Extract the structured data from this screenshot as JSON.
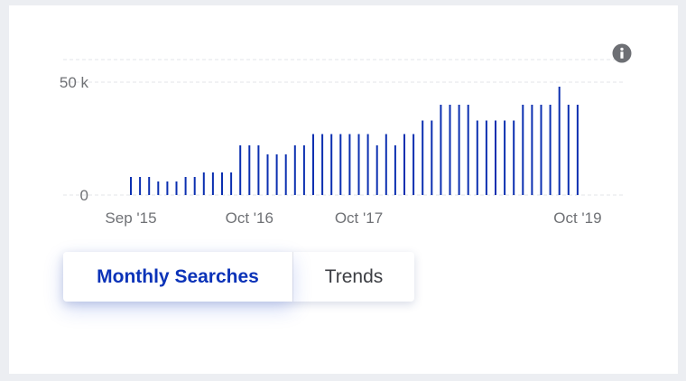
{
  "colors": {
    "bar": "#0b2fb0",
    "grid": "#e3e5e9",
    "active_tab": "#0b33b8"
  },
  "icons": {
    "info": "info-icon"
  },
  "tabs": [
    {
      "label": "Monthly Searches",
      "active": true
    },
    {
      "label": "Trends",
      "active": false
    }
  ],
  "chart_data": {
    "type": "bar",
    "ylabel": "",
    "xlabel": "",
    "y_ticks": [
      {
        "value": 0,
        "label": "0"
      },
      {
        "value": 50000,
        "label": "50 k"
      }
    ],
    "ylim": [
      0,
      60000
    ],
    "x_ticks": [
      {
        "index": 0,
        "label": "Sep '15"
      },
      {
        "index": 13,
        "label": "Oct '16"
      },
      {
        "index": 25,
        "label": "Oct '17"
      },
      {
        "index": 49,
        "label": "Oct '19"
      }
    ],
    "categories": [
      "Sep '15",
      "Oct '15",
      "Nov '15",
      "Dec '15",
      "Jan '16",
      "Feb '16",
      "Mar '16",
      "Apr '16",
      "May '16",
      "Jun '16",
      "Jul '16",
      "Aug '16",
      "Sep '16",
      "Oct '16",
      "Nov '16",
      "Dec '16",
      "Jan '17",
      "Feb '17",
      "Mar '17",
      "Apr '17",
      "May '17",
      "Jun '17",
      "Jul '17",
      "Aug '17",
      "Sep '17",
      "Oct '17",
      "Nov '17",
      "Dec '17",
      "Jan '18",
      "Feb '18",
      "Mar '18",
      "Apr '18",
      "May '18",
      "Jun '18",
      "Jul '18",
      "Aug '18",
      "Sep '18",
      "Oct '18",
      "Nov '18",
      "Dec '18",
      "Jan '19",
      "Feb '19",
      "Mar '19",
      "Apr '19",
      "May '19",
      "Jun '19",
      "Jul '19",
      "Aug '19",
      "Sep '19",
      "Oct '19"
    ],
    "values": [
      8000,
      8000,
      8000,
      6000,
      6000,
      6000,
      8000,
      8000,
      10000,
      10000,
      10000,
      10000,
      22000,
      22000,
      22000,
      18000,
      18000,
      18000,
      22000,
      22000,
      27000,
      27000,
      27000,
      27000,
      27000,
      27000,
      27000,
      22000,
      27000,
      22000,
      27000,
      27000,
      33000,
      33000,
      40000,
      40000,
      40000,
      40000,
      33000,
      33000,
      33000,
      33000,
      33000,
      40000,
      40000,
      40000,
      40000,
      48000,
      40000,
      40000
    ]
  }
}
